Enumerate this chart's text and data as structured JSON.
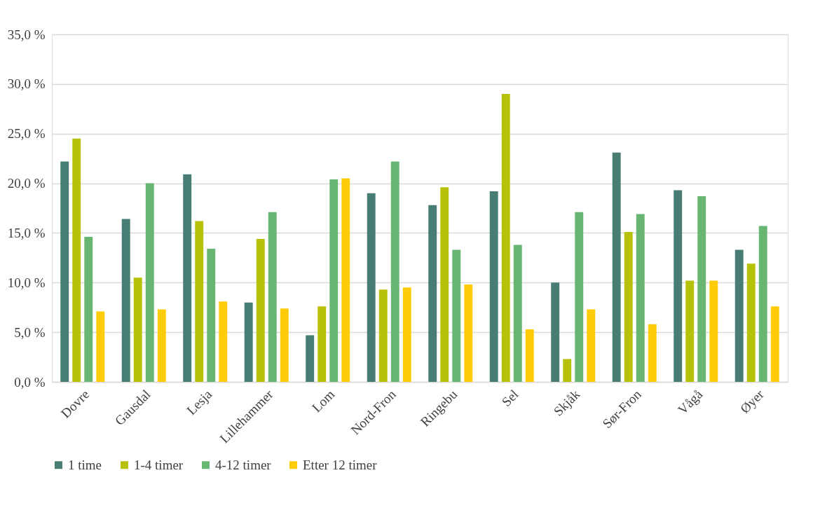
{
  "chart_data": {
    "type": "bar",
    "categories": [
      "Dovre",
      "Gausdal",
      "Lesja",
      "Lillehammer",
      "Lom",
      "Nord-Fron",
      "Ringebu",
      "Sel",
      "Skjåk",
      "Sør-Fron",
      "Vågå",
      "Øyer"
    ],
    "series": [
      {
        "name": "1 time",
        "color": "#477d72",
        "values": [
          22.2,
          16.4,
          20.9,
          8.0,
          4.7,
          19.0,
          17.8,
          19.2,
          10.0,
          23.1,
          19.3,
          13.3
        ]
      },
      {
        "name": "1-4 timer",
        "color": "#b8c10a",
        "values": [
          24.5,
          10.5,
          16.2,
          14.4,
          7.6,
          9.3,
          19.6,
          29.0,
          2.3,
          15.1,
          10.2,
          11.9
        ]
      },
      {
        "name": "4-12 timer",
        "color": "#69b572",
        "values": [
          14.6,
          20.0,
          13.4,
          17.1,
          20.4,
          22.2,
          13.3,
          13.8,
          17.1,
          16.9,
          18.7,
          15.7
        ]
      },
      {
        "name": "Etter 12 timer",
        "color": "#ffcc0a",
        "values": [
          7.1,
          7.3,
          8.1,
          7.4,
          20.5,
          9.5,
          9.8,
          5.3,
          7.3,
          5.8,
          10.2,
          7.6
        ]
      }
    ],
    "ylim": [
      0,
      35
    ],
    "yticks": [
      {
        "value": 0,
        "label": "0,0 %"
      },
      {
        "value": 5,
        "label": "5,0 %"
      },
      {
        "value": 10,
        "label": "10,0 %"
      },
      {
        "value": 15,
        "label": "15,0 %"
      },
      {
        "value": 20,
        "label": "20,0 %"
      },
      {
        "value": 25,
        "label": "25,0 %"
      },
      {
        "value": 30,
        "label": "30,0 %"
      },
      {
        "value": 35,
        "label": "35,0 %"
      }
    ],
    "grid": "y",
    "legend": "bottom"
  }
}
